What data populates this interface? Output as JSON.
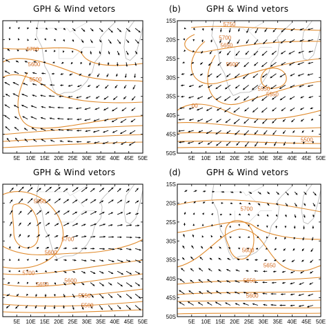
{
  "figure": {
    "panels": [
      {
        "id": "a",
        "label": "",
        "title": "GPH & Wind vetors",
        "show_ylabels": false,
        "show_xlabels": true,
        "contour_labels": [
          {
            "text": "5700",
            "lon": 8.5,
            "lat": -23
          },
          {
            "text": "5600",
            "lon": 9.0,
            "lat": -27
          },
          {
            "text": "5500",
            "lon": 9.5,
            "lat": -31
          }
        ]
      },
      {
        "id": "b",
        "label": "(b)",
        "title": "GPH & Wind vetors",
        "show_ylabels": true,
        "show_xlabels": true,
        "contour_labels": [
          {
            "text": "5750",
            "lon": 16,
            "lat": -16.5
          },
          {
            "text": "5700",
            "lon": 14.5,
            "lat": -20
          },
          {
            "text": "5650",
            "lon": 15,
            "lat": -22
          },
          {
            "text": "5600",
            "lon": 17,
            "lat": -27
          },
          {
            "text": "5550",
            "lon": 28,
            "lat": -33.5
          },
          {
            "text": "5550",
            "lon": 31,
            "lat": -35
          },
          {
            "text": "5500",
            "lon": 43,
            "lat": -47
          },
          {
            "text": "00",
            "lon": 5,
            "lat": -38
          }
        ]
      },
      {
        "id": "c",
        "label": "",
        "title": "GPH & Wind vetors",
        "show_ylabels": false,
        "show_xlabels": true,
        "contour_labels": [
          {
            "text": "5650",
            "lon": 11,
            "lat": -20
          },
          {
            "text": "5700",
            "lon": 21,
            "lat": -30
          },
          {
            "text": "5600",
            "lon": 15,
            "lat": -33.5
          },
          {
            "text": "5700",
            "lon": 7,
            "lat": -39
          },
          {
            "text": "5650",
            "lon": 12,
            "lat": -42
          },
          {
            "text": "5600",
            "lon": 22,
            "lat": -41
          },
          {
            "text": "5550",
            "lon": 27,
            "lat": -45
          },
          {
            "text": "5500",
            "lon": 28,
            "lat": -47.5
          }
        ]
      },
      {
        "id": "d",
        "label": "(d)",
        "title": "GPH & Wind vetors",
        "show_ylabels": true,
        "show_xlabels": true,
        "contour_labels": [
          {
            "text": "5700",
            "lon": 22,
            "lat": -22
          },
          {
            "text": "5600",
            "lon": 22.5,
            "lat": -33
          },
          {
            "text": "5650",
            "lon": 30,
            "lat": -37
          },
          {
            "text": "5650",
            "lon": 23,
            "lat": -41
          },
          {
            "text": "5600",
            "lon": 24,
            "lat": -45
          }
        ]
      }
    ],
    "axes": {
      "lon_ticks": [
        "5E",
        "10E",
        "15E",
        "20E",
        "25E",
        "30E",
        "35E",
        "40E",
        "45E",
        "50E"
      ],
      "lat_ticks": [
        "15S",
        "20S",
        "25S",
        "30S",
        "35S",
        "40S",
        "45S",
        "50S"
      ],
      "lon_range": [
        0,
        50
      ],
      "lat_range": [
        -15,
        -50
      ]
    },
    "colors": {
      "contour": "#e08a2c",
      "coast": "#bbbbbb",
      "arrow": "#000000",
      "frame": "#000000"
    }
  }
}
